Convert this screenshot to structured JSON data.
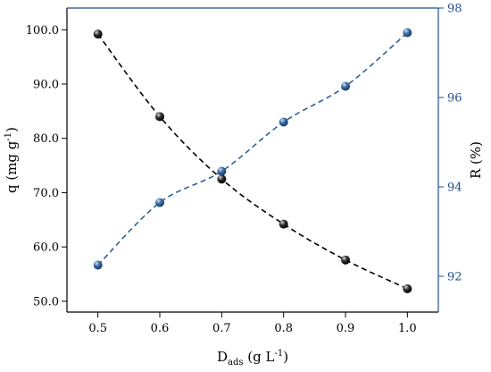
{
  "chart_data": {
    "type": "line",
    "x": [
      0.5,
      0.6,
      0.7,
      0.8,
      0.9,
      1.0
    ],
    "xticks": [
      "0.5",
      "0.6",
      "0.7",
      "0.8",
      "0.9",
      "1.0"
    ],
    "xlim": [
      0.45,
      1.05
    ],
    "xlabel": {
      "main": "D",
      "sub": "ads",
      "unit_pre": " (g L",
      "unit_sup": "-1",
      "unit_post": ")"
    },
    "left_axis": {
      "label": {
        "main": "q (mg g",
        "sup": "-1",
        "post": ")"
      },
      "ticks": [
        "50.0",
        "60.0",
        "70.0",
        "80.0",
        "90.0",
        "100.0"
      ],
      "tick_values": [
        50,
        60,
        70,
        80,
        90,
        100
      ],
      "ylim": [
        48.0,
        104.0
      ],
      "color": "#000000"
    },
    "right_axis": {
      "label": "R (%)",
      "ticks": [
        "92",
        "94",
        "96",
        "98"
      ],
      "tick_values": [
        92,
        94,
        96,
        98
      ],
      "ylim": [
        91.2,
        98.0
      ],
      "color": "#1f4e8c"
    },
    "series": [
      {
        "axis": "left",
        "color": "#000000",
        "values": [
          99.2,
          84.0,
          72.5,
          64.2,
          57.6,
          52.3
        ]
      },
      {
        "axis": "right",
        "color": "#2f5f9a",
        "values": [
          92.25,
          93.65,
          94.35,
          95.45,
          96.25,
          97.45
        ]
      }
    ],
    "grid": false
  }
}
